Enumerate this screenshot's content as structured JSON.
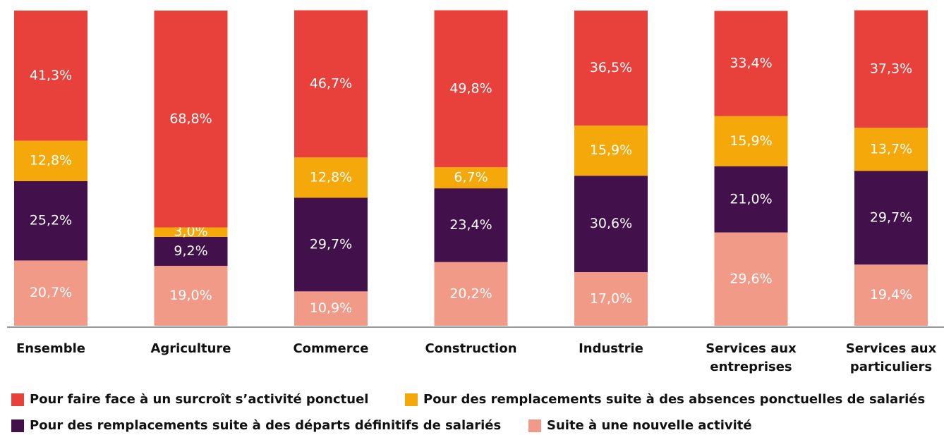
{
  "chart_data": {
    "type": "stacked_bar",
    "categories": [
      "Ensemble",
      "Agriculture",
      "Commerce",
      "Construction",
      "Industrie",
      "Services aux entreprises",
      "Services aux particuliers"
    ],
    "series": [
      {
        "name": "Pour faire face à un surcroît s’activité ponctuel",
        "color": "#e8413c",
        "values": [
          41.3,
          68.8,
          46.7,
          49.8,
          36.5,
          33.4,
          37.3
        ],
        "value_labels": [
          "41,3%",
          "68,8%",
          "46,7%",
          "49,8%",
          "36,5%",
          "33,4%",
          "37,3%"
        ]
      },
      {
        "name": "Pour des remplacements suite à des absences ponctuelles de salariés",
        "color": "#f5a80a",
        "values": [
          12.8,
          3.0,
          12.8,
          6.7,
          15.9,
          15.9,
          13.7
        ],
        "value_labels": [
          "12,8%",
          "3,0%",
          "12,8%",
          "6,7%",
          "15,9%",
          "15,9%",
          "13,7%"
        ]
      },
      {
        "name": "Pour des remplacements suite à des départs définitifs de salariés",
        "color": "#42104b",
        "values": [
          25.2,
          9.2,
          29.7,
          23.4,
          30.6,
          21.0,
          29.7
        ],
        "value_labels": [
          "25,2%",
          "9,2%",
          "29,7%",
          "23,4%",
          "30,6%",
          "21,0%",
          "29,7%"
        ]
      },
      {
        "name": "Suite à une nouvelle activité",
        "color": "#f19a87",
        "values": [
          20.7,
          19.0,
          10.9,
          20.2,
          17.0,
          29.6,
          19.4
        ],
        "value_labels": [
          "20,7%",
          "19,0%",
          "10,9%",
          "20,2%",
          "17,0%",
          "29,6%",
          "19,4%"
        ]
      }
    ]
  }
}
